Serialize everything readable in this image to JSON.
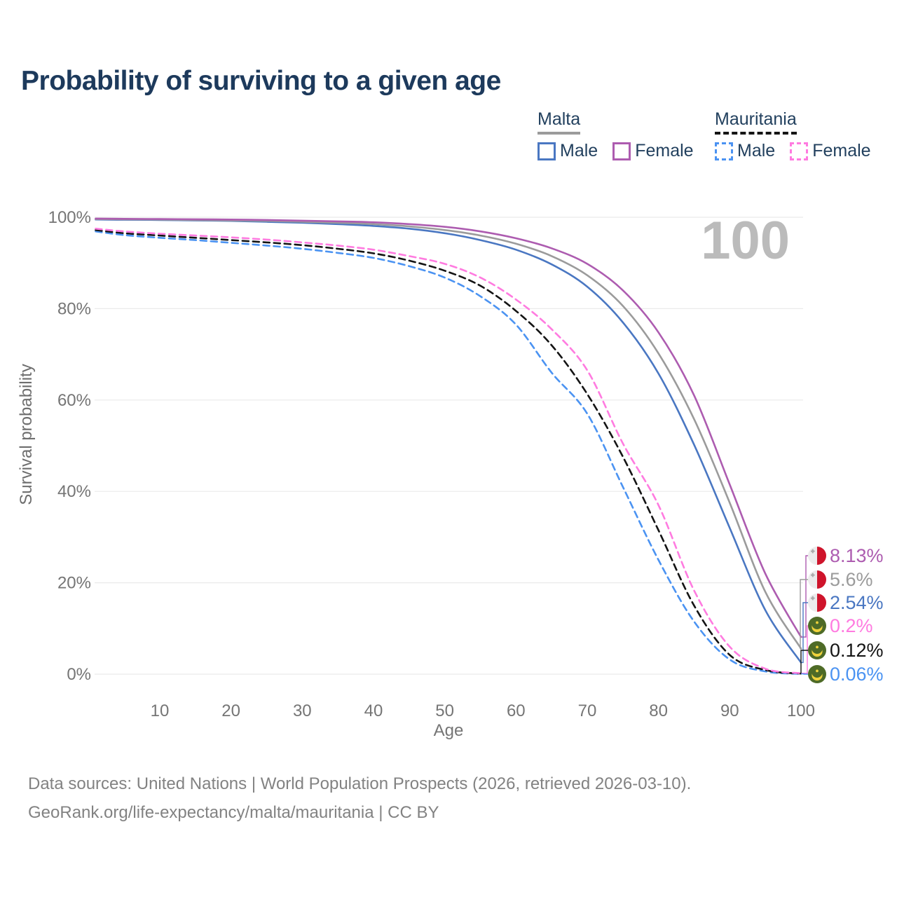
{
  "header": {
    "title": "Probability of surviving to a given age"
  },
  "legend": {
    "groups": [
      {
        "name": "Malta",
        "line_style": "solid",
        "underline_color": "#9b9b9b",
        "items": [
          {
            "label": "Male",
            "color": "#4a77c2"
          },
          {
            "label": "Female",
            "color": "#ad5cb0"
          }
        ]
      },
      {
        "name": "Mauritania",
        "line_style": "dashed",
        "underline_color": "#151515",
        "items": [
          {
            "label": "Male",
            "color": "#4b93f2"
          },
          {
            "label": "Female",
            "color": "#ff7be0"
          }
        ]
      }
    ]
  },
  "chart_data": {
    "type": "line",
    "title": "Probability of surviving to a given age",
    "xlabel": "Age",
    "ylabel": "Survival probability",
    "watermark": "100",
    "grid": "horizontal",
    "legend_position": "top-right",
    "xlim": [
      1,
      100
    ],
    "ylim": [
      0,
      100
    ],
    "x_axis": {
      "ticks": [
        {
          "value": 10,
          "label": "10"
        },
        {
          "value": 20,
          "label": "20"
        },
        {
          "value": 30,
          "label": "30"
        },
        {
          "value": 40,
          "label": "40"
        },
        {
          "value": 50,
          "label": "50"
        },
        {
          "value": 60,
          "label": "60"
        },
        {
          "value": 70,
          "label": "70"
        },
        {
          "value": 80,
          "label": "80"
        },
        {
          "value": 90,
          "label": "90"
        },
        {
          "value": 100,
          "label": "100"
        }
      ]
    },
    "y_axis": {
      "ticks": [
        {
          "value": 0,
          "label": "0%"
        },
        {
          "value": 20,
          "label": "20%"
        },
        {
          "value": 40,
          "label": "40%"
        },
        {
          "value": 60,
          "label": "60%"
        },
        {
          "value": 80,
          "label": "80%"
        },
        {
          "value": 100,
          "label": "100%"
        }
      ]
    },
    "x": [
      1,
      5,
      10,
      15,
      20,
      25,
      30,
      35,
      40,
      45,
      50,
      55,
      60,
      65,
      70,
      75,
      80,
      85,
      90,
      95,
      100
    ],
    "series": [
      {
        "name": "Malta Female",
        "country": "Malta",
        "sex": "Female",
        "style": "solid",
        "color": "#ad5cb0",
        "flag": "malta",
        "end_label": "8.13%",
        "values": [
          99.7,
          99.65,
          99.6,
          99.55,
          99.5,
          99.4,
          99.25,
          99.1,
          98.9,
          98.5,
          97.9,
          96.9,
          95.4,
          93.2,
          89.8,
          84.0,
          74.8,
          61.0,
          41.5,
          22.0,
          8.13
        ]
      },
      {
        "name": "Malta",
        "country": "Malta",
        "sex": "Both",
        "style": "solid",
        "color": "#9b9b9b",
        "flag": "malta",
        "end_label": "5.6%",
        "values": [
          99.6,
          99.55,
          99.5,
          99.4,
          99.3,
          99.2,
          99.0,
          98.8,
          98.5,
          98.0,
          97.2,
          96.0,
          94.2,
          91.5,
          87.3,
          80.6,
          70.2,
          55.8,
          37.5,
          18.0,
          5.6
        ]
      },
      {
        "name": "Malta Male",
        "country": "Malta",
        "sex": "Male",
        "style": "solid",
        "color": "#4a77c2",
        "flag": "malta",
        "end_label": "2.54%",
        "values": [
          99.5,
          99.45,
          99.4,
          99.3,
          99.2,
          99.0,
          98.8,
          98.5,
          98.1,
          97.5,
          96.5,
          95.0,
          92.9,
          89.7,
          84.8,
          77.0,
          65.8,
          50.2,
          32.0,
          14.0,
          2.54
        ]
      },
      {
        "name": "Mauritania Female",
        "country": "Mauritania",
        "sex": "Female",
        "style": "dashed",
        "color": "#ff7be0",
        "flag": "mauritania",
        "end_label": "0.2%",
        "values": [
          97.5,
          96.9,
          96.4,
          96.0,
          95.6,
          95.1,
          94.5,
          93.8,
          92.9,
          91.5,
          89.8,
          86.8,
          82.0,
          75.5,
          66.5,
          50.5,
          37.0,
          18.3,
          6.0,
          1.2,
          0.2
        ]
      },
      {
        "name": "Mauritania",
        "country": "Mauritania",
        "sex": "Both",
        "style": "dashed",
        "color": "#141414",
        "flag": "mauritania",
        "end_label": "0.12%",
        "values": [
          97.2,
          96.5,
          96.0,
          95.5,
          95.0,
          94.5,
          93.9,
          93.1,
          92.1,
          90.5,
          88.3,
          85.0,
          79.5,
          72.0,
          61.3,
          47.6,
          31.5,
          15.0,
          4.2,
          0.9,
          0.12
        ]
      },
      {
        "name": "Mauritania Male",
        "country": "Mauritania",
        "sex": "Male",
        "style": "dashed",
        "color": "#4b93f2",
        "flag": "mauritania",
        "end_label": "0.06%",
        "values": [
          96.9,
          96.1,
          95.5,
          95.0,
          94.4,
          93.8,
          93.1,
          92.2,
          91.1,
          89.3,
          86.8,
          82.7,
          76.5,
          66.0,
          57.0,
          41.0,
          25.0,
          11.5,
          3.2,
          0.6,
          0.06
        ]
      }
    ]
  },
  "colors": {
    "title": "#1d3a5c",
    "tick": "#757575",
    "grid": "#eaeaea",
    "watermark": "#bbbbbb",
    "footer": "#828282",
    "malta_flag_red": "#cf142b",
    "mauritania_flag_green": "#4e6b27",
    "mauritania_flag_yellow": "#efd23c"
  },
  "footer": {
    "line1": "Data sources: United Nations | World Population Prospects (2026, retrieved 2026-03-10).",
    "line2": "GeoRank.org/life-expectancy/malta/mauritania | CC BY"
  }
}
